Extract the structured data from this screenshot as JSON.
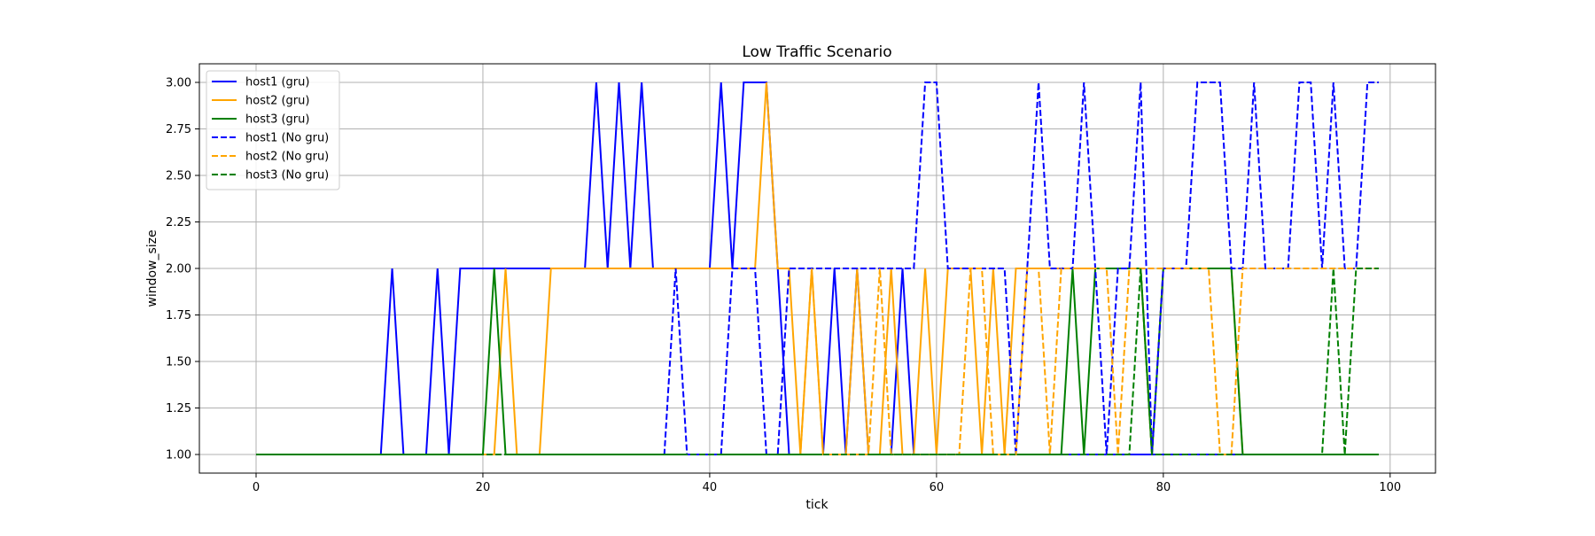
{
  "chart_data": {
    "type": "line",
    "title": "Low Traffic Scenario",
    "xlabel": "tick",
    "ylabel": "window_size",
    "xlim": [
      -5,
      104
    ],
    "ylim": [
      0.9,
      3.1
    ],
    "xticks": [
      0,
      20,
      40,
      60,
      80,
      100
    ],
    "xtick_labels": [
      "0",
      "20",
      "40",
      "60",
      "80",
      "100"
    ],
    "yticks": [
      1.0,
      1.25,
      1.5,
      1.75,
      2.0,
      2.25,
      2.5,
      2.75,
      3.0
    ],
    "ytick_labels": [
      "1.00",
      "1.25",
      "1.50",
      "1.75",
      "2.00",
      "2.25",
      "2.50",
      "2.75",
      "3.00"
    ],
    "grid": true,
    "legend_position": "top-left",
    "x": [
      0,
      1,
      2,
      3,
      4,
      5,
      6,
      7,
      8,
      9,
      10,
      11,
      12,
      13,
      14,
      15,
      16,
      17,
      18,
      19,
      20,
      21,
      22,
      23,
      24,
      25,
      26,
      27,
      28,
      29,
      30,
      31,
      32,
      33,
      34,
      35,
      36,
      37,
      38,
      39,
      40,
      41,
      42,
      43,
      44,
      45,
      46,
      47,
      48,
      49,
      50,
      51,
      52,
      53,
      54,
      55,
      56,
      57,
      58,
      59,
      60,
      61,
      62,
      63,
      64,
      65,
      66,
      67,
      68,
      69,
      70,
      71,
      72,
      73,
      74,
      75,
      76,
      77,
      78,
      79,
      80,
      81,
      82,
      83,
      84,
      85,
      86,
      87,
      88,
      89,
      90,
      91,
      92,
      93,
      94,
      95,
      96,
      97,
      98,
      99
    ],
    "series": [
      {
        "name": "host1 (gru)",
        "color": "#0000ff",
        "dashed": false,
        "values": [
          1,
          1,
          1,
          1,
          1,
          1,
          1,
          1,
          1,
          1,
          1,
          1,
          2,
          1,
          1,
          1,
          2,
          1,
          2,
          2,
          2,
          2,
          2,
          2,
          2,
          2,
          2,
          2,
          2,
          2,
          3,
          2,
          3,
          2,
          3,
          2,
          2,
          2,
          2,
          2,
          2,
          3,
          2,
          3,
          3,
          3,
          2,
          1,
          1,
          1,
          1,
          2,
          1,
          2,
          1,
          1,
          1,
          2,
          1,
          1,
          1,
          1,
          1,
          1,
          1,
          1,
          1,
          1,
          1,
          1,
          1,
          1,
          1,
          1,
          1,
          1,
          1,
          1,
          1,
          1,
          1,
          1,
          1,
          1,
          1,
          1,
          1,
          1,
          1,
          1,
          1,
          1,
          1,
          1,
          1,
          1,
          1,
          1,
          1,
          1
        ]
      },
      {
        "name": "host2 (gru)",
        "color": "#ffa500",
        "dashed": false,
        "values": [
          1,
          1,
          1,
          1,
          1,
          1,
          1,
          1,
          1,
          1,
          1,
          1,
          1,
          1,
          1,
          1,
          1,
          1,
          1,
          1,
          1,
          1,
          2,
          1,
          1,
          1,
          2,
          2,
          2,
          2,
          2,
          2,
          2,
          2,
          2,
          2,
          2,
          2,
          2,
          2,
          2,
          2,
          2,
          2,
          2,
          3,
          2,
          2,
          1,
          2,
          1,
          1,
          1,
          2,
          1,
          1,
          2,
          1,
          1,
          2,
          1,
          2,
          2,
          2,
          1,
          2,
          1,
          2,
          2,
          2,
          2,
          2,
          2,
          2,
          2,
          2,
          2,
          2,
          2,
          1,
          2,
          2,
          2,
          2,
          2,
          2,
          2,
          1,
          1,
          1,
          1,
          1,
          1,
          1,
          1,
          1,
          1,
          1,
          1,
          1
        ]
      },
      {
        "name": "host3 (gru)",
        "color": "#008000",
        "dashed": false,
        "values": [
          1,
          1,
          1,
          1,
          1,
          1,
          1,
          1,
          1,
          1,
          1,
          1,
          1,
          1,
          1,
          1,
          1,
          1,
          1,
          1,
          1,
          2,
          1,
          1,
          1,
          1,
          1,
          1,
          1,
          1,
          1,
          1,
          1,
          1,
          1,
          1,
          1,
          1,
          1,
          1,
          1,
          1,
          1,
          1,
          1,
          1,
          1,
          1,
          1,
          1,
          1,
          1,
          1,
          1,
          1,
          1,
          1,
          1,
          1,
          1,
          1,
          1,
          1,
          1,
          1,
          1,
          1,
          1,
          1,
          1,
          1,
          1,
          2,
          1,
          2,
          2,
          2,
          2,
          2,
          1,
          2,
          2,
          2,
          2,
          2,
          2,
          2,
          1,
          1,
          1,
          1,
          1,
          1,
          1,
          1,
          1,
          1,
          1,
          1,
          1
        ]
      },
      {
        "name": "host1 (No gru)",
        "color": "#0000ff",
        "dashed": true,
        "values": [
          1,
          1,
          1,
          1,
          1,
          1,
          1,
          1,
          1,
          1,
          1,
          1,
          1,
          1,
          1,
          1,
          1,
          1,
          1,
          1,
          1,
          1,
          1,
          1,
          1,
          1,
          1,
          1,
          1,
          1,
          1,
          1,
          1,
          1,
          1,
          1,
          1,
          2,
          1,
          1,
          1,
          1,
          2,
          2,
          2,
          1,
          1,
          2,
          2,
          2,
          2,
          2,
          2,
          2,
          2,
          2,
          2,
          2,
          2,
          3,
          3,
          2,
          2,
          2,
          2,
          2,
          2,
          1,
          2,
          3,
          2,
          2,
          2,
          3,
          2,
          1,
          2,
          2,
          3,
          1,
          2,
          2,
          2,
          3,
          3,
          3,
          2,
          2,
          3,
          2,
          2,
          2,
          3,
          3,
          2,
          3,
          2,
          2,
          3,
          3
        ]
      },
      {
        "name": "host2 (No gru)",
        "color": "#ffa500",
        "dashed": true,
        "values": [
          1,
          1,
          1,
          1,
          1,
          1,
          1,
          1,
          1,
          1,
          1,
          1,
          1,
          1,
          1,
          1,
          1,
          1,
          1,
          1,
          1,
          1,
          1,
          1,
          1,
          1,
          1,
          1,
          1,
          1,
          1,
          1,
          1,
          1,
          1,
          1,
          1,
          1,
          1,
          1,
          1,
          1,
          1,
          1,
          1,
          1,
          1,
          1,
          1,
          2,
          1,
          1,
          1,
          1,
          1,
          2,
          1,
          1,
          1,
          1,
          1,
          1,
          1,
          2,
          2,
          1,
          1,
          1,
          2,
          2,
          1,
          2,
          2,
          2,
          2,
          2,
          1,
          2,
          2,
          2,
          2,
          2,
          2,
          2,
          2,
          1,
          1,
          2,
          2,
          2,
          2,
          2,
          2,
          2,
          2,
          2,
          2,
          2,
          2,
          2
        ]
      },
      {
        "name": "host3 (No gru)",
        "color": "#008000",
        "dashed": true,
        "values": [
          1,
          1,
          1,
          1,
          1,
          1,
          1,
          1,
          1,
          1,
          1,
          1,
          1,
          1,
          1,
          1,
          1,
          1,
          1,
          1,
          1,
          1,
          1,
          1,
          1,
          1,
          1,
          1,
          1,
          1,
          1,
          1,
          1,
          1,
          1,
          1,
          1,
          1,
          1,
          1,
          1,
          1,
          1,
          1,
          1,
          1,
          1,
          1,
          1,
          1,
          1,
          1,
          1,
          1,
          1,
          1,
          1,
          1,
          1,
          1,
          1,
          1,
          1,
          1,
          1,
          1,
          1,
          1,
          1,
          1,
          1,
          1,
          1,
          1,
          1,
          1,
          1,
          1,
          2,
          1,
          1,
          1,
          1,
          1,
          1,
          1,
          1,
          1,
          1,
          1,
          1,
          1,
          1,
          1,
          1,
          2,
          1,
          2,
          2,
          2
        ]
      }
    ]
  }
}
